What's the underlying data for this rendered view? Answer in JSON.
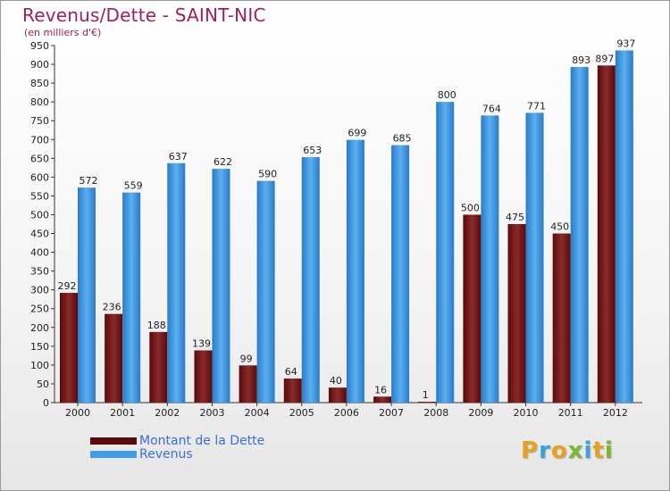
{
  "chart_data": {
    "type": "bar",
    "title": "Revenus/Dette - SAINT-NIC",
    "subtitle": "(en milliers d'€)",
    "xlabel": "",
    "ylabel": "",
    "ylim": [
      0,
      950
    ],
    "ytick_step": 50,
    "grid": false,
    "categories": [
      "2000",
      "2001",
      "2002",
      "2003",
      "2004",
      "2005",
      "2006",
      "2007",
      "2008",
      "2009",
      "2010",
      "2011",
      "2012"
    ],
    "series": [
      {
        "name": "Montant de la Dette",
        "color": "#7a1a1a",
        "values": [
          292,
          236,
          188,
          139,
          99,
          64,
          40,
          16,
          1,
          500,
          475,
          450,
          897
        ]
      },
      {
        "name": "Revenus",
        "color": "#3e9be8",
        "values": [
          572,
          559,
          637,
          622,
          590,
          653,
          699,
          685,
          800,
          764,
          771,
          893,
          937
        ]
      }
    ],
    "legend": "bottom-left"
  },
  "brand": {
    "letters": [
      "P",
      "r",
      "o",
      "x",
      "i",
      "t",
      "i"
    ],
    "colors": [
      "#e8a020",
      "#3aa0e0",
      "#e8a020",
      "#7ab830",
      "#3aa0e0",
      "#e8a020",
      "#7ab830"
    ]
  }
}
